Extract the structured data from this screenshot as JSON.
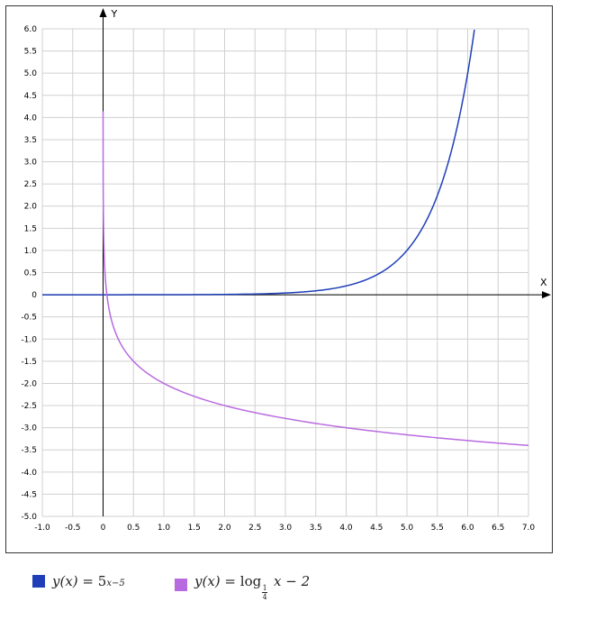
{
  "chart_data": {
    "type": "line",
    "xlabel": "X",
    "ylabel": "Y",
    "xlim": [
      -1.0,
      7.0
    ],
    "ylim": [
      -5.0,
      6.0
    ],
    "grid": true,
    "legend_placement": "bottom",
    "x_ticks": [
      "-1.0",
      "-0.5",
      "0",
      "0.5",
      "1.0",
      "1.5",
      "2.0",
      "2.5",
      "3.0",
      "3.5",
      "4.0",
      "4.5",
      "5.0",
      "5.5",
      "6.0",
      "6.5",
      "7.0"
    ],
    "y_ticks": [
      "6.0",
      "5.5",
      "5.0",
      "4.5",
      "4.0",
      "3.5",
      "3.0",
      "2.5",
      "2.0",
      "1.5",
      "1.0",
      "0.5",
      "0",
      "-0.5",
      "-1.0",
      "-1.5",
      "-2.0",
      "-2.5",
      "-3.0",
      "-3.5",
      "-4.0",
      "-4.5",
      "-5.0"
    ],
    "series": [
      {
        "name": "y(x) = 5^(x−5)",
        "color": "#1f3fb8",
        "x": [
          -1.0,
          0,
          1.0,
          2.0,
          3.0,
          3.5,
          4.0,
          4.5,
          5.0,
          5.25,
          5.5,
          5.75,
          6.0,
          6.11
        ],
        "y": [
          0.0,
          0.0003,
          0.0016,
          0.008,
          0.04,
          0.089,
          0.2,
          0.447,
          1.0,
          1.495,
          2.236,
          3.344,
          5.0,
          5.98
        ]
      },
      {
        "name": "y(x) = log_(1/4) x − 2",
        "color": "#b86be0",
        "x": [
          0.0002,
          0.001,
          0.005,
          0.01,
          0.0625,
          0.25,
          0.5,
          1.0,
          2.0,
          3.0,
          4.0,
          5.0,
          6.0,
          7.0
        ],
        "y": [
          4.14,
          2.98,
          1.82,
          1.32,
          0.0,
          -1.0,
          -1.5,
          -2.0,
          -2.5,
          -2.79,
          -3.0,
          -3.16,
          -3.29,
          -3.4
        ]
      }
    ]
  },
  "legend": {
    "items": [
      {
        "color": "#1f3fb8",
        "lhs": "y(x)",
        "eq": "=",
        "base": "5",
        "exp": "x−5"
      },
      {
        "color": "#b86be0",
        "lhs": "y(x)",
        "eq": "=",
        "fn": "log",
        "num": "1",
        "den": "4",
        "rest": "x − 2"
      }
    ]
  }
}
